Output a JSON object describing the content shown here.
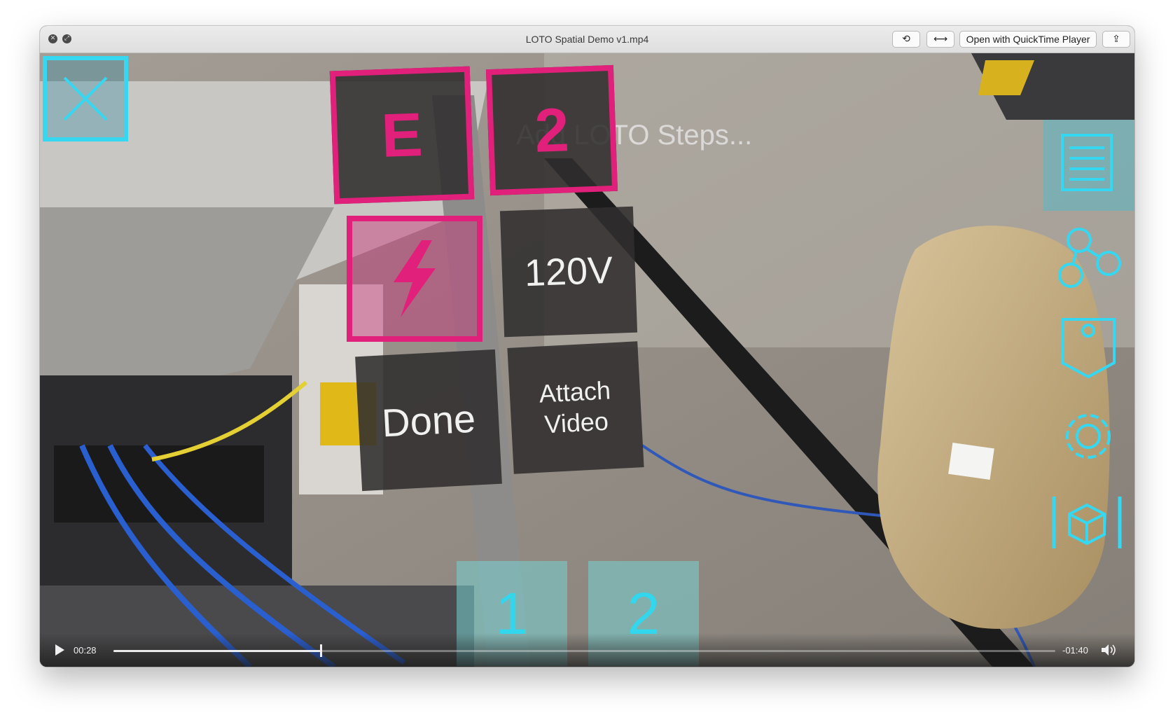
{
  "window": {
    "title": "LOTO Spatial Demo v1.mp4",
    "open_with_label": "Open with QuickTime Player"
  },
  "overlay": {
    "ghost_text": "Add LOTO Steps...",
    "tile_e": "E",
    "tile_2": "2",
    "tile_voltage": "120V",
    "tile_done": "Done",
    "tile_attach_video": "Attach Video",
    "step_1": "1",
    "step_2": "2"
  },
  "sidebar_icons": [
    "list-icon",
    "nodes-icon",
    "tag-icon",
    "gear-icon",
    "cube-icon"
  ],
  "playback": {
    "current_time": "00:28",
    "remaining_time": "-01:40",
    "progress": 0.22
  },
  "colors": {
    "accent_pink": "#e0207a",
    "accent_cyan": "#35d8f0"
  }
}
